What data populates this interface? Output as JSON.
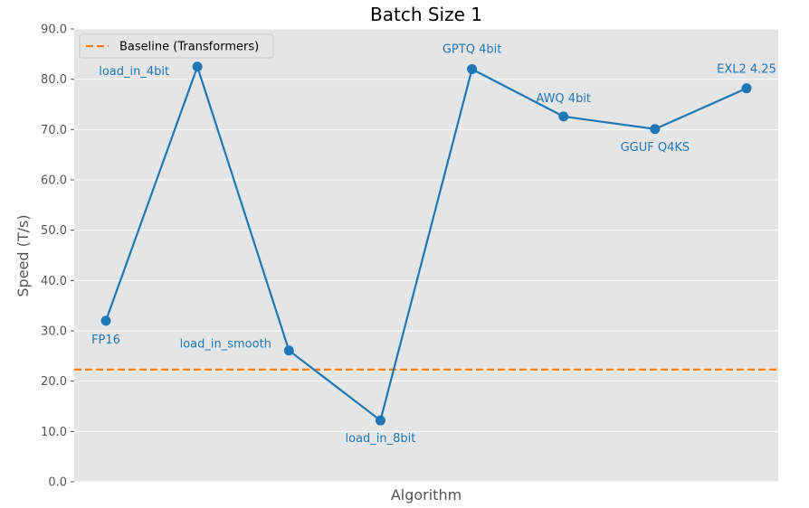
{
  "chart_data": {
    "type": "line",
    "title": "Batch Size 1",
    "xlabel": "Algorithm",
    "ylabel": "Speed (T/s)",
    "ylim": [
      0,
      90
    ],
    "yticks": [
      "0.0",
      "10.0",
      "20.0",
      "30.0",
      "40.0",
      "50.0",
      "60.0",
      "70.0",
      "80.0",
      "90.0"
    ],
    "grid": true,
    "legend_position": "top-left",
    "baseline": {
      "name": "Baseline (Transformers)",
      "value": 22.3,
      "color": "#ff7f0e"
    },
    "series": [
      {
        "color": "#1f77b4",
        "points": [
          {
            "label": "FP16",
            "value": 32.0
          },
          {
            "label": "load_in_4bit",
            "value": 82.5
          },
          {
            "label": "load_in_smooth",
            "value": 26.1
          },
          {
            "label": "load_in_8bit",
            "value": 12.2
          },
          {
            "label": "GPTQ 4bit",
            "value": 82.0
          },
          {
            "label": "AWQ 4bit",
            "value": 72.6
          },
          {
            "label": "GGUF Q4KS",
            "value": 70.1
          },
          {
            "label": "EXL2 4.25",
            "value": 78.2
          }
        ]
      }
    ]
  }
}
